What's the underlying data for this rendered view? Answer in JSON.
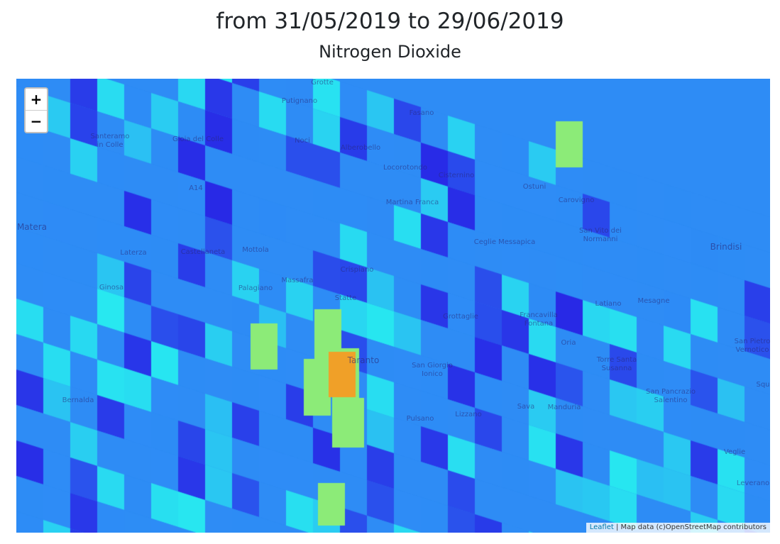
{
  "header": {
    "date_range": "from 31/05/2019 to 29/06/2019",
    "pollutant": "Nitrogen Dioxide"
  },
  "map": {
    "zoom_in_label": "+",
    "zoom_out_label": "−",
    "attribution_link": "Leaflet",
    "attribution_text": " | Map data (c)OpenStreetMap contributors",
    "place_labels": [
      "Grotte",
      "Putignano",
      "Fasano",
      "Santeramo\nin Colle",
      "Gioia del Colle",
      "Noci",
      "Alberobello",
      "Locorotondo",
      "Cisternino",
      "Ostuni",
      "Carovigno",
      "A14",
      "Martina Franca",
      "Matera",
      "San Vito dei\nNormanni",
      "Brindisi",
      "Laterza",
      "Castellaneta",
      "Mottola",
      "Ceglie Messapica",
      "Crispiano",
      "Massafra",
      "Palagiano",
      "Statte",
      "Ginosa",
      "Taranto",
      "Grottaglie",
      "Francavilla\nFontana",
      "Latiano",
      "Mesagne",
      "Oria",
      "San Giorgio\nIonico",
      "Torre Santa\nSusanna",
      "San Pietro\nVernotico",
      "Squ",
      "Bernalda",
      "San Pancrazio\nSalentino",
      "Pulsano",
      "Lizzano",
      "Sava",
      "Manduria",
      "Veglie",
      "Leverano"
    ],
    "colors": {
      "very_low": "#2828e6",
      "low": "#2e8cf5",
      "mid": "#28e8f0",
      "high": "#8ceb78",
      "peak": "#f0a028"
    }
  }
}
